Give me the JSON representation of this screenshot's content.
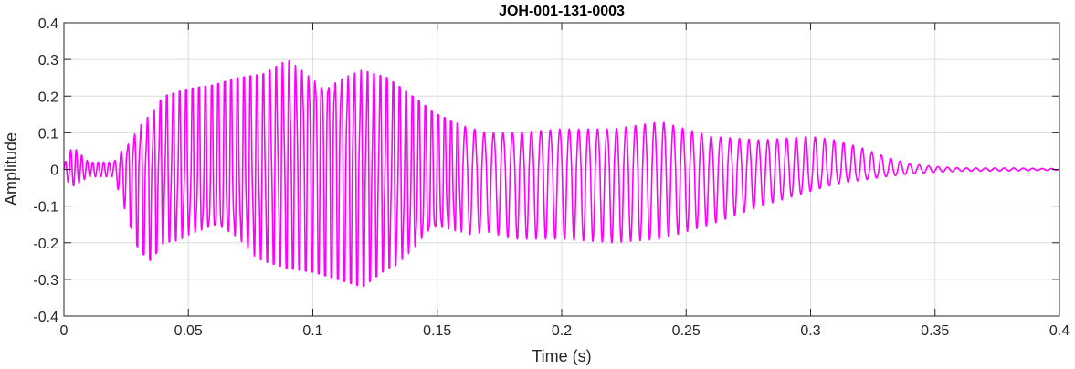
{
  "chart_data": {
    "type": "line",
    "title": "JOH-001-131-0003",
    "xlabel": "Time (s)",
    "ylabel": "Amplitude",
    "xlim": [
      0,
      0.4
    ],
    "ylim": [
      -0.4,
      0.4
    ],
    "x_ticks": [
      0,
      0.05,
      0.1,
      0.15,
      0.2,
      0.25,
      0.3,
      0.35,
      0.4
    ],
    "x_tick_labels": [
      "0",
      "0.05",
      "0.1",
      "0.15",
      "0.2",
      "0.25",
      "0.3",
      "0.35",
      "0.4"
    ],
    "y_ticks": [
      -0.4,
      -0.3,
      -0.2,
      -0.1,
      0,
      0.1,
      0.2,
      0.3,
      0.4
    ],
    "y_tick_labels": [
      "-0.4",
      "-0.3",
      "-0.2",
      "-0.1",
      "0",
      "0.1",
      "0.2",
      "0.3",
      "0.4"
    ],
    "grid": true,
    "series": [
      {
        "color": "#ff00ff",
        "envelope_time": [
          0,
          0.002,
          0.004,
          0.01,
          0.02,
          0.025,
          0.03,
          0.035,
          0.04,
          0.05,
          0.06,
          0.07,
          0.08,
          0.09,
          0.1,
          0.105,
          0.11,
          0.12,
          0.13,
          0.14,
          0.15,
          0.16,
          0.17,
          0.18,
          0.2,
          0.22,
          0.24,
          0.26,
          0.28,
          0.3,
          0.31,
          0.32,
          0.33,
          0.34,
          0.35,
          0.36,
          0.38,
          0.4
        ],
        "envelope_max": [
          0.01,
          0.05,
          0.06,
          0.02,
          0.02,
          0.07,
          0.12,
          0.15,
          0.2,
          0.22,
          0.23,
          0.25,
          0.26,
          0.3,
          0.3,
          0.29,
          0.29,
          0.27,
          0.25,
          0.2,
          0.15,
          0.12,
          0.1,
          0.1,
          0.11,
          0.11,
          0.13,
          0.09,
          0.08,
          0.09,
          0.08,
          0.06,
          0.035,
          0.015,
          0.008,
          0.004,
          0.004,
          0.002
        ],
        "envelope_min": [
          -0.005,
          -0.04,
          -0.045,
          -0.02,
          -0.02,
          -0.12,
          -0.22,
          -0.25,
          -0.2,
          -0.19,
          -0.2,
          -0.21,
          -0.25,
          -0.27,
          -0.28,
          -0.29,
          -0.3,
          -0.32,
          -0.27,
          -0.25,
          -0.2,
          -0.18,
          -0.17,
          -0.19,
          -0.19,
          -0.2,
          -0.19,
          -0.15,
          -0.1,
          -0.06,
          -0.04,
          -0.03,
          -0.02,
          -0.012,
          -0.008,
          -0.005,
          -0.004,
          -0.002
        ],
        "oscillation_periods_s": [
          0.0022,
          0.0026,
          0.0038
        ]
      }
    ]
  }
}
